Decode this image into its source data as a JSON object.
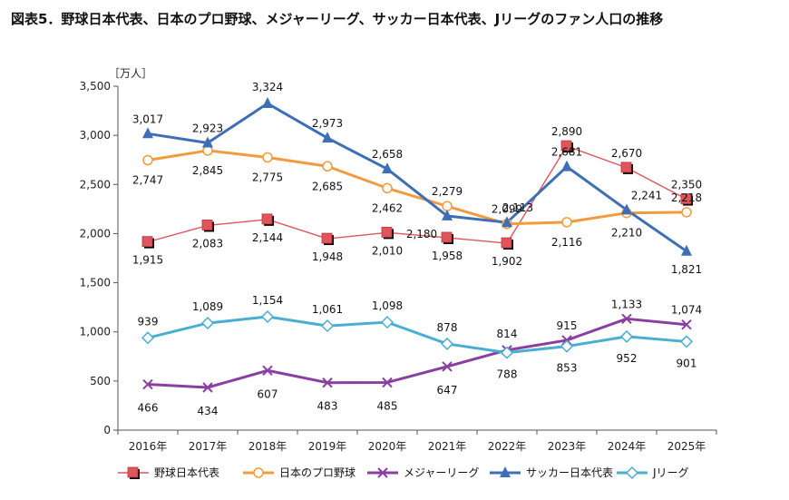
{
  "chart_data": {
    "type": "line",
    "title": "図表5．野球日本代表、日本のプロ野球、メジャーリーグ、サッカー日本代表、Jリーグのファン人口の推移",
    "ylabel": "［万人］",
    "xlabel": "",
    "categories": [
      "2016年",
      "2017年",
      "2018年",
      "2019年",
      "2020年",
      "2021年",
      "2022年",
      "2023年",
      "2024年",
      "2025年"
    ],
    "ylim": [
      0,
      3500
    ],
    "yticks": [
      0,
      500,
      1000,
      1500,
      2000,
      2500,
      3000,
      3500
    ],
    "ytick_labels": [
      "0",
      "500",
      "1,000",
      "1,500",
      "2,000",
      "2,500",
      "3,000",
      "3,500"
    ],
    "grid": false,
    "legend": "bottom",
    "series": [
      {
        "name": "野球日本代表",
        "color": "#e0545b",
        "marker": "square",
        "values": [
          1915,
          2083,
          2144,
          1948,
          2010,
          1958,
          1902,
          2890,
          2670,
          2350
        ],
        "labels": [
          "1,915",
          "2,083",
          "2,144",
          "1,948",
          "2,010",
          "1,958",
          "1,902",
          "2,890",
          "2,670",
          "2,350"
        ]
      },
      {
        "name": "日本のプロ野球",
        "color": "#f39a3e",
        "marker": "circle",
        "values": [
          2747,
          2845,
          2775,
          2685,
          2462,
          2279,
          2099,
          2116,
          2210,
          2218
        ],
        "labels": [
          "2,747",
          "2,845",
          "2,775",
          "2,685",
          "2,462",
          "2,279",
          "2,099",
          "2,116",
          "2,210",
          "2,218"
        ]
      },
      {
        "name": "メジャーリーグ",
        "color": "#8a3fa0",
        "marker": "x",
        "values": [
          466,
          434,
          607,
          483,
          485,
          647,
          814,
          915,
          1133,
          1074
        ],
        "labels": [
          "466",
          "434",
          "607",
          "483",
          "485",
          "647",
          "814",
          "915",
          "1,133",
          "1,074"
        ]
      },
      {
        "name": "サッカー日本代表",
        "color": "#3e6fb5",
        "marker": "triangle",
        "values": [
          3017,
          2923,
          3324,
          2973,
          2658,
          2180,
          2113,
          2681,
          2241,
          1821
        ],
        "labels": [
          "3,017",
          "2,923",
          "3,324",
          "2,973",
          "2,658",
          "2,180",
          "2,113",
          "2,681",
          "2,241",
          "1,821"
        ]
      },
      {
        "name": "Jリーグ",
        "color": "#4aaed0",
        "marker": "diamond",
        "values": [
          939,
          1089,
          1154,
          1061,
          1098,
          878,
          788,
          853,
          952,
          901
        ],
        "labels": [
          "939",
          "1,089",
          "1,154",
          "1,061",
          "1,098",
          "878",
          "788",
          "853",
          "952",
          "901"
        ]
      }
    ]
  }
}
